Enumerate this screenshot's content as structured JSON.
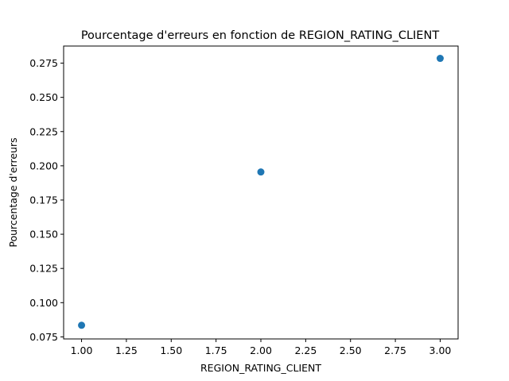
{
  "chart_data": {
    "type": "scatter",
    "title": "Pourcentage d'erreurs en fonction de REGION_RATING_CLIENT",
    "xlabel": "REGION_RATING_CLIENT",
    "ylabel": "Pourcentage d'erreurs",
    "xlim": [
      0.9,
      3.1
    ],
    "ylim": [
      0.0735,
      0.2875
    ],
    "x_ticks": [
      1.0,
      1.25,
      1.5,
      1.75,
      2.0,
      2.25,
      2.5,
      2.75,
      3.0
    ],
    "x_tick_labels": [
      "1.00",
      "1.25",
      "1.50",
      "1.75",
      "2.00",
      "2.25",
      "2.50",
      "2.75",
      "3.00"
    ],
    "y_ticks": [
      0.075,
      0.1,
      0.125,
      0.15,
      0.175,
      0.2,
      0.225,
      0.25,
      0.275
    ],
    "y_tick_labels": [
      "0.075",
      "0.100",
      "0.125",
      "0.150",
      "0.175",
      "0.200",
      "0.225",
      "0.250",
      "0.275"
    ],
    "grid": false,
    "marker_color": "#1f77b4",
    "points": [
      {
        "x": 1.0,
        "y": 0.0835
      },
      {
        "x": 2.0,
        "y": 0.1955
      },
      {
        "x": 3.0,
        "y": 0.2785
      }
    ]
  }
}
